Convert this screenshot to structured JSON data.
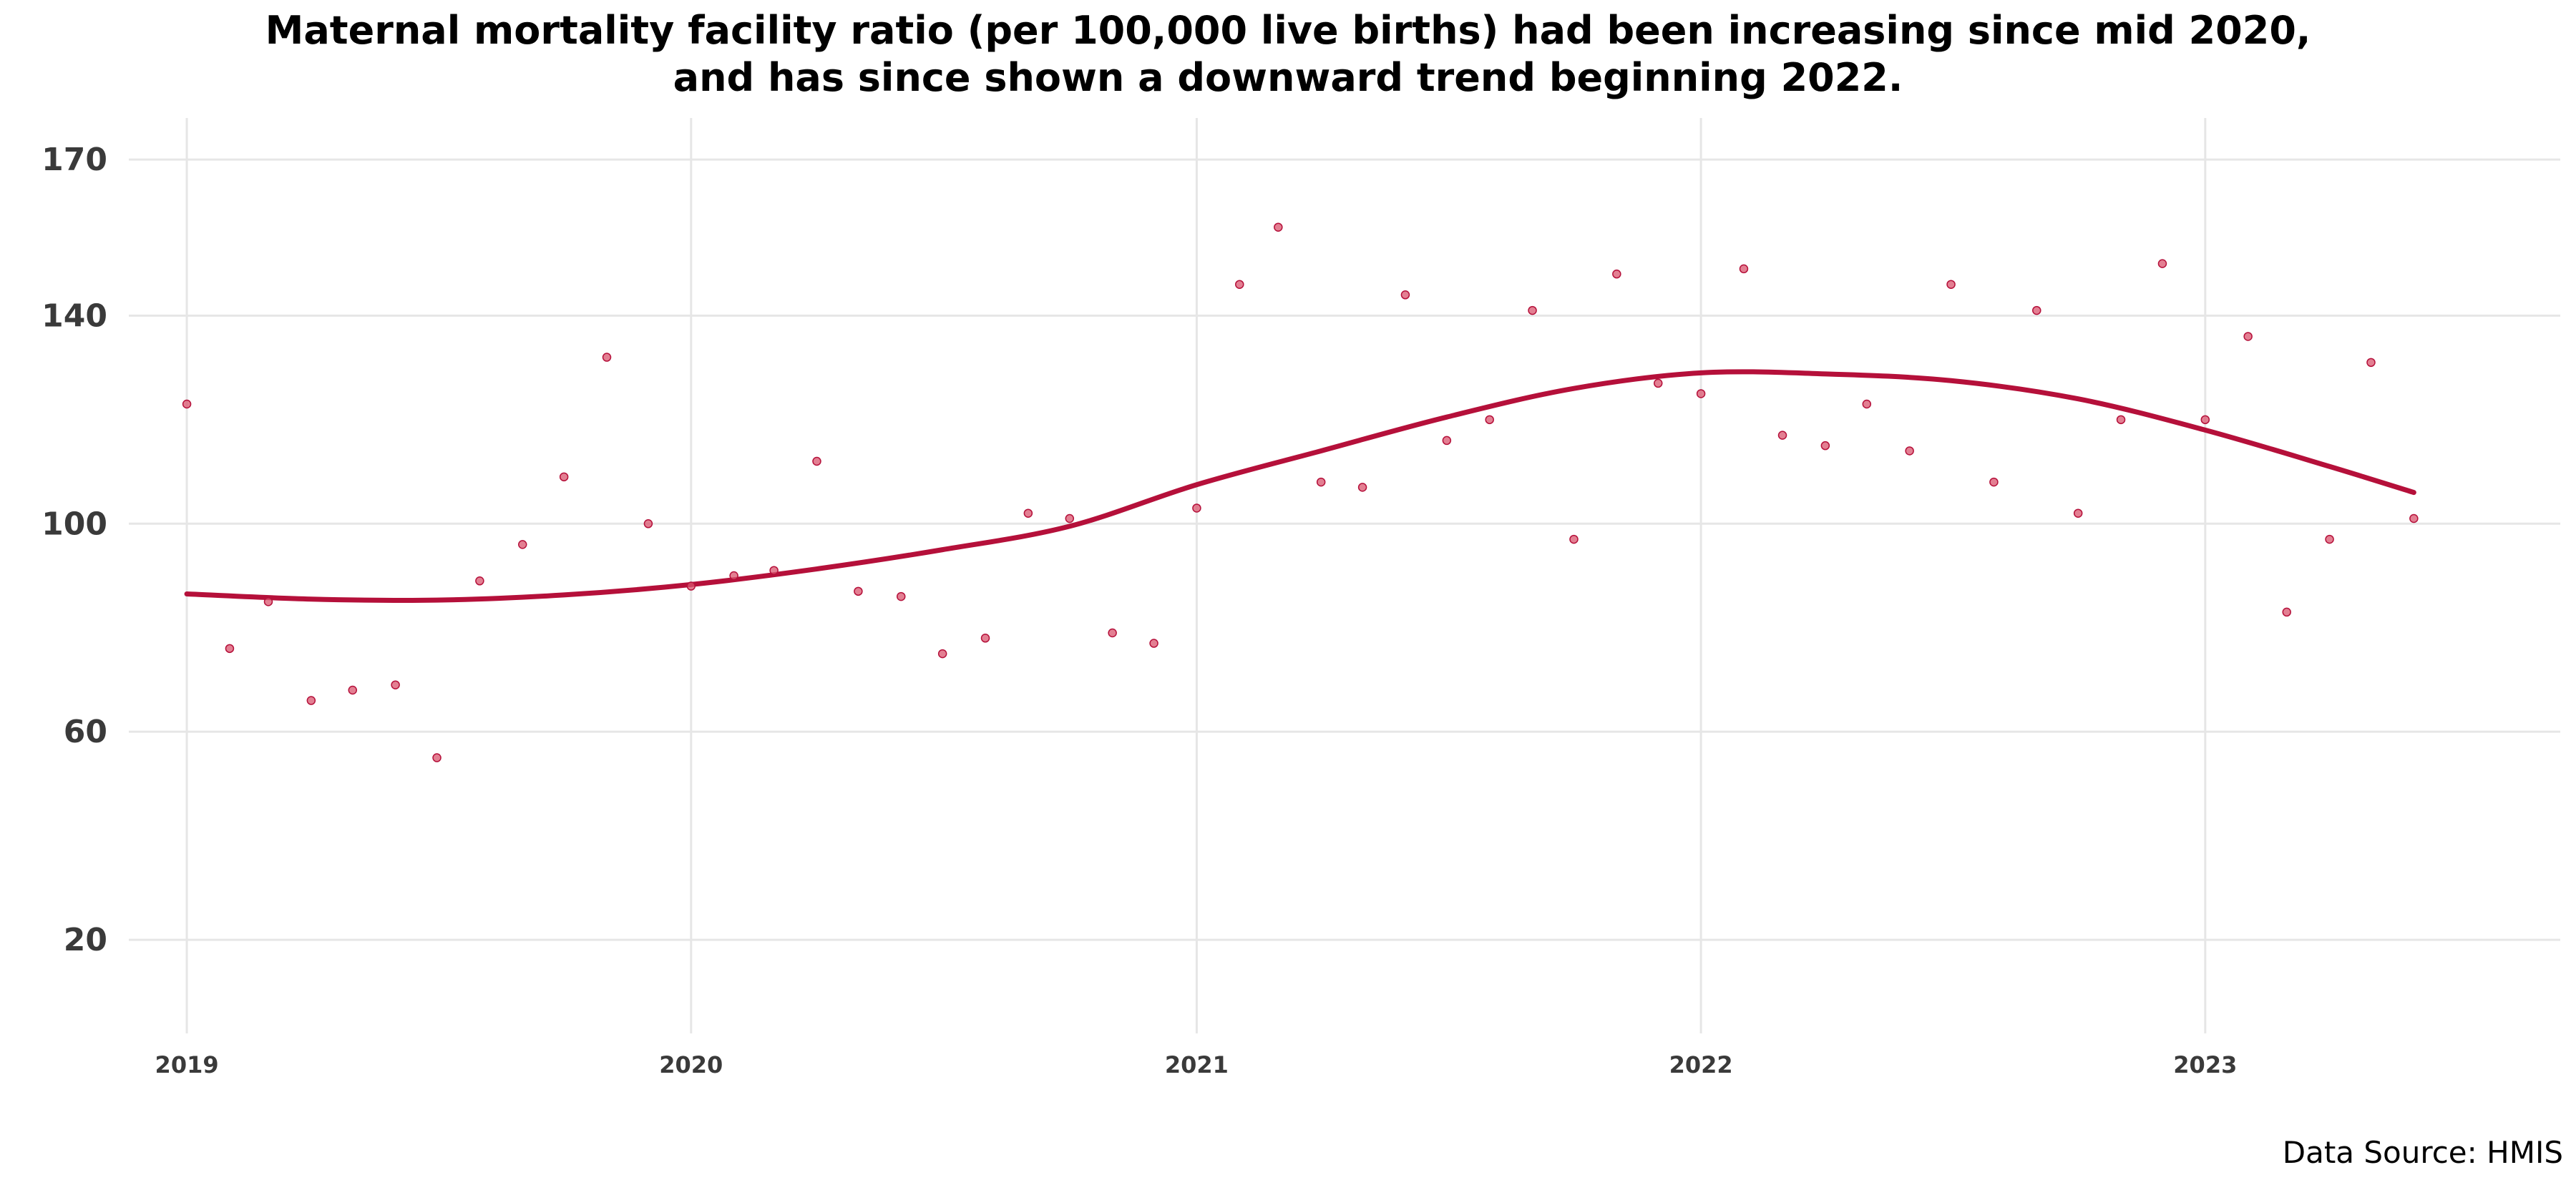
{
  "chart_data": {
    "type": "scatter",
    "title_lines": [
      "Maternal mortality facility ratio (per 100,000 live births) had been increasing since mid 2020,",
      "and has since shown a downward trend beginning 2022."
    ],
    "xlabel": "",
    "ylabel": "",
    "x_ticks": [
      "2019",
      "2020",
      "2021",
      "2022",
      "2023"
    ],
    "y_ticks": [
      20,
      60,
      100,
      140,
      170
    ],
    "xlim": [
      "2018-11-20",
      "2023-09-15"
    ],
    "ylim": [
      2,
      178
    ],
    "grid": true,
    "legend": "none",
    "colors": {
      "points": "#d9546e",
      "trend": "#b5103a",
      "grid": "#e6e6e6"
    },
    "points": [
      {
        "x": "2019-01",
        "y": 123
      },
      {
        "x": "2019-02",
        "y": 76
      },
      {
        "x": "2019-03",
        "y": 85
      },
      {
        "x": "2019-04",
        "y": 66
      },
      {
        "x": "2019-05",
        "y": 68
      },
      {
        "x": "2019-06",
        "y": 69
      },
      {
        "x": "2019-07",
        "y": 55
      },
      {
        "x": "2019-08",
        "y": 89
      },
      {
        "x": "2019-09",
        "y": 96
      },
      {
        "x": "2019-10",
        "y": 109
      },
      {
        "x": "2019-11",
        "y": 132
      },
      {
        "x": "2019-12",
        "y": 100
      },
      {
        "x": "2020-01",
        "y": 88
      },
      {
        "x": "2020-02",
        "y": 90
      },
      {
        "x": "2020-03",
        "y": 91
      },
      {
        "x": "2020-04",
        "y": 112
      },
      {
        "x": "2020-05",
        "y": 87
      },
      {
        "x": "2020-06",
        "y": 86
      },
      {
        "x": "2020-07",
        "y": 75
      },
      {
        "x": "2020-08",
        "y": 78
      },
      {
        "x": "2020-09",
        "y": 102
      },
      {
        "x": "2020-10",
        "y": 101
      },
      {
        "x": "2020-11",
        "y": 79
      },
      {
        "x": "2020-12",
        "y": 77
      },
      {
        "x": "2021-01",
        "y": 103
      },
      {
        "x": "2021-02",
        "y": 146
      },
      {
        "x": "2021-03",
        "y": 157
      },
      {
        "x": "2021-04",
        "y": 108
      },
      {
        "x": "2021-05",
        "y": 107
      },
      {
        "x": "2021-06",
        "y": 144
      },
      {
        "x": "2021-07",
        "y": 116
      },
      {
        "x": "2021-08",
        "y": 120
      },
      {
        "x": "2021-09",
        "y": 141
      },
      {
        "x": "2021-10",
        "y": 97
      },
      {
        "x": "2021-11",
        "y": 148
      },
      {
        "x": "2021-12",
        "y": 127
      },
      {
        "x": "2022-01",
        "y": 125
      },
      {
        "x": "2022-02",
        "y": 149
      },
      {
        "x": "2022-03",
        "y": 117
      },
      {
        "x": "2022-04",
        "y": 115
      },
      {
        "x": "2022-05",
        "y": 123
      },
      {
        "x": "2022-06",
        "y": 114
      },
      {
        "x": "2022-07",
        "y": 146
      },
      {
        "x": "2022-08",
        "y": 108
      },
      {
        "x": "2022-09",
        "y": 141
      },
      {
        "x": "2022-10",
        "y": 102
      },
      {
        "x": "2022-11",
        "y": 120
      },
      {
        "x": "2022-12",
        "y": 150
      },
      {
        "x": "2023-01",
        "y": 120
      },
      {
        "x": "2023-02",
        "y": 136
      },
      {
        "x": "2023-03",
        "y": 83
      },
      {
        "x": "2023-04",
        "y": 97
      },
      {
        "x": "2023-05",
        "y": 131
      },
      {
        "x": "2023-06",
        "y": 101
      }
    ],
    "trend": [
      {
        "x": "2019-01",
        "y": 86.5
      },
      {
        "x": "2019-04",
        "y": 85.5
      },
      {
        "x": "2019-07",
        "y": 85.3
      },
      {
        "x": "2019-10",
        "y": 86.3
      },
      {
        "x": "2020-01",
        "y": 88.3
      },
      {
        "x": "2020-04",
        "y": 91.3
      },
      {
        "x": "2020-07",
        "y": 95.0
      },
      {
        "x": "2020-10",
        "y": 99.5
      },
      {
        "x": "2021-01",
        "y": 107.5
      },
      {
        "x": "2021-04",
        "y": 114.0
      },
      {
        "x": "2021-07",
        "y": 120.5
      },
      {
        "x": "2021-10",
        "y": 126.0
      },
      {
        "x": "2022-01",
        "y": 129.0
      },
      {
        "x": "2022-04",
        "y": 128.8
      },
      {
        "x": "2022-07",
        "y": 127.5
      },
      {
        "x": "2022-10",
        "y": 124.0
      },
      {
        "x": "2023-01",
        "y": 118.0
      },
      {
        "x": "2023-04",
        "y": 111.0
      },
      {
        "x": "2023-06",
        "y": 106.0
      }
    ]
  },
  "footer": {
    "source": "Data Source: HMIS"
  }
}
